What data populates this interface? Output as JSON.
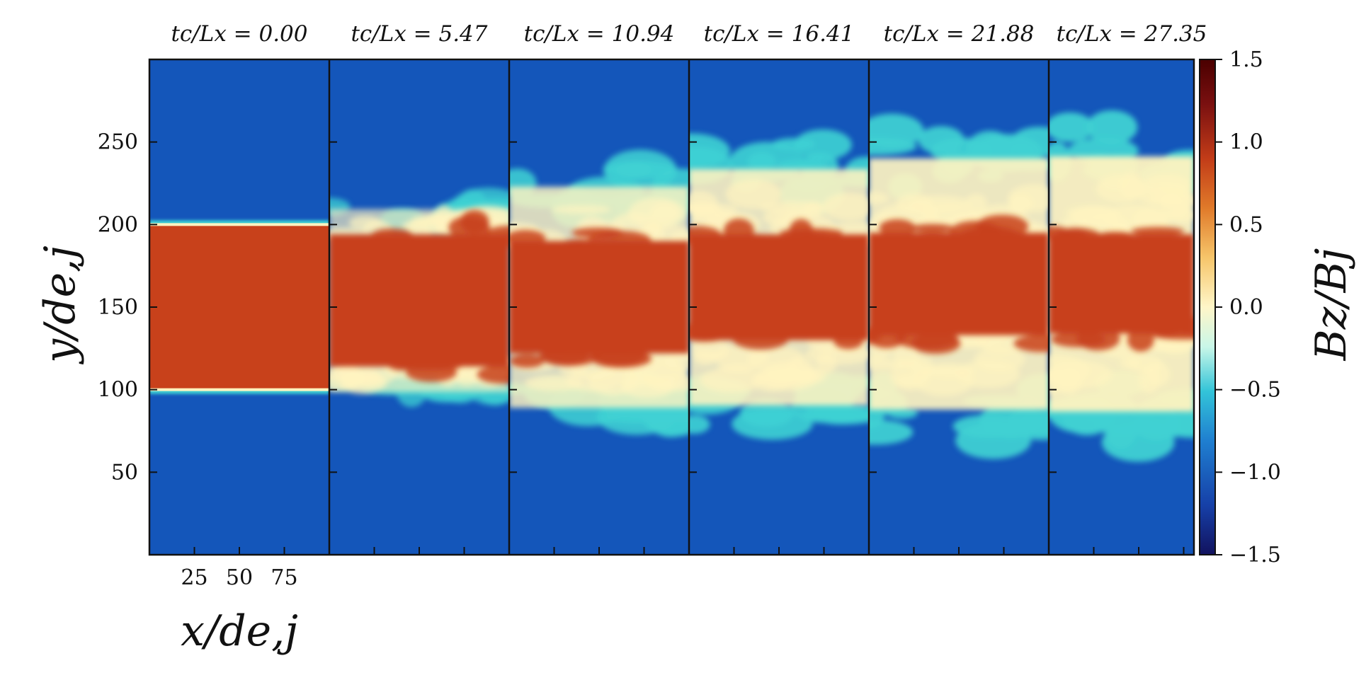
{
  "chart_data": {
    "type": "heatmap",
    "panel_titles": [
      "tc/Lx = 0.00",
      "tc/Lx = 5.47",
      "tc/Lx = 10.94",
      "tc/Lx = 16.41",
      "tc/Lx = 21.88",
      "tc/Lx = 27.35"
    ],
    "times": [
      0.0,
      5.47,
      10.94,
      16.41,
      21.88,
      27.35
    ],
    "xlabel": "x/de,j",
    "ylabel": "y/de,j",
    "colorbar_label": "Bz/Bj",
    "x_ticks": [
      25,
      50,
      75
    ],
    "y_ticks": [
      50,
      100,
      150,
      200,
      250
    ],
    "xlim": [
      0,
      100
    ],
    "ylim": [
      0,
      300
    ],
    "colorbar_ticks": [
      1.5,
      1.0,
      0.5,
      0.0,
      -0.5,
      -1.0,
      -1.5
    ],
    "colorbar_range": [
      -1.5,
      1.5
    ],
    "colormap": [
      "#12125e",
      "#1640a8",
      "#1f7fd0",
      "#33c4d8",
      "#c9f7e8",
      "#fff6c8",
      "#f6c56a",
      "#e07a2a",
      "#c23c18",
      "#7a1010",
      "#4a0000"
    ],
    "colors": {
      "background_field": "#1456ba",
      "jet_core": "#c8411b",
      "mixing_layer": "#fff3c0",
      "edge": "#3fd1d3"
    },
    "core_band_initial": [
      100,
      200
    ],
    "center_half_width": [
      50,
      40,
      34,
      32,
      31,
      30
    ],
    "mixing_extent": [
      0,
      28,
      60,
      72,
      82,
      86
    ],
    "mixing_strength": [
      0,
      0.5,
      0.8,
      0.9,
      0.95,
      1.0
    ],
    "center_offset": [
      0,
      4,
      6,
      12,
      14,
      14
    ]
  }
}
